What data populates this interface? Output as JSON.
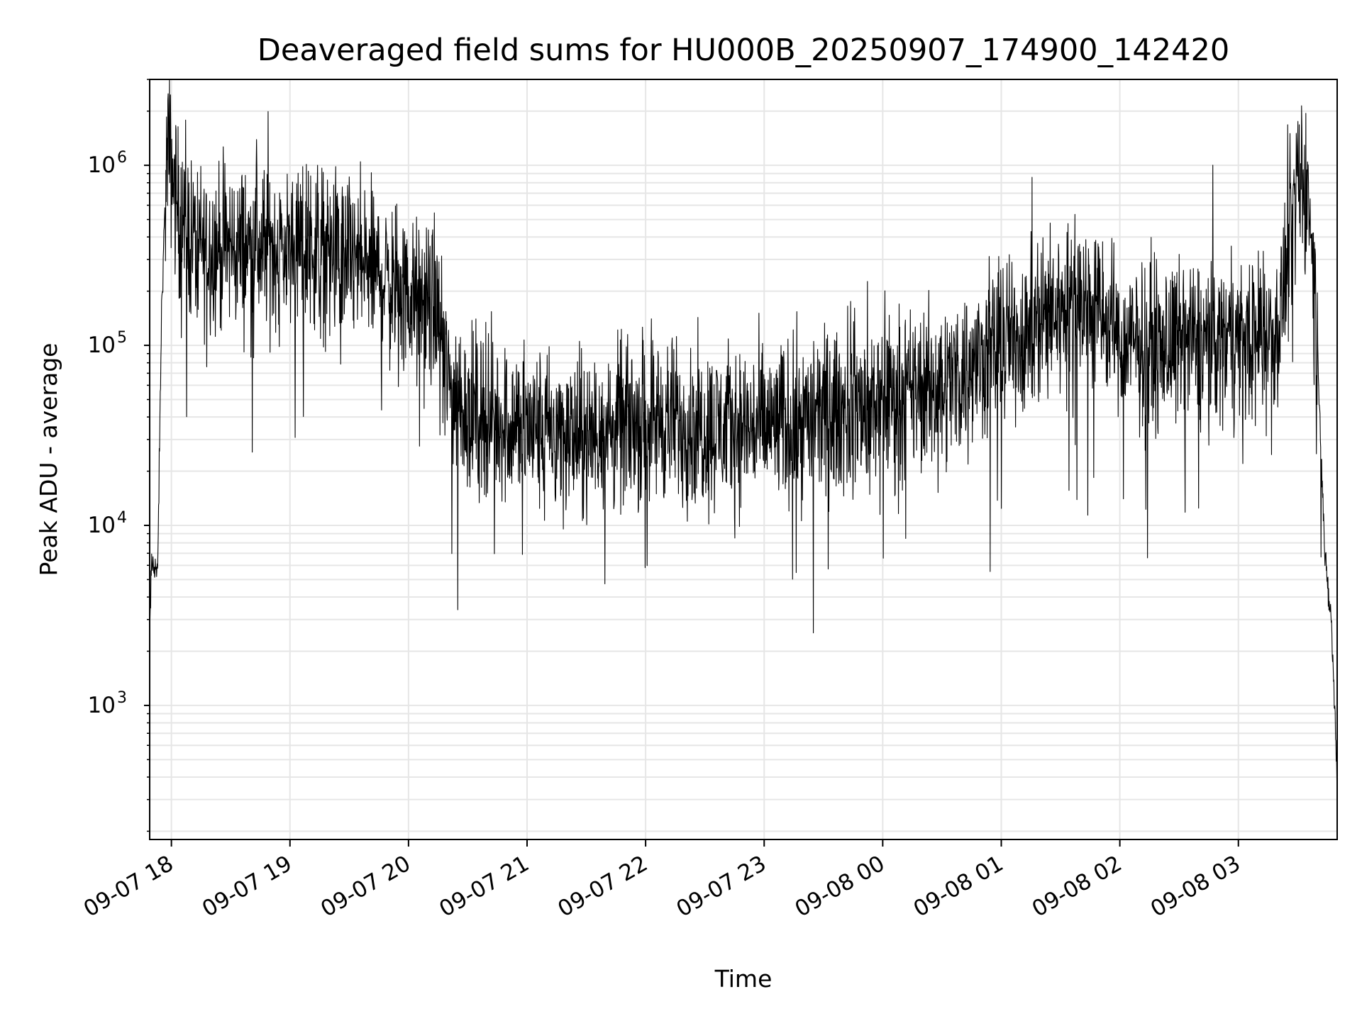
{
  "chart_data": {
    "type": "line",
    "title": "Deaveraged field sums for HU000B_20250907_174900_142420",
    "xlabel": "Time",
    "ylabel": "Peak ADU - average",
    "y_scale": "log",
    "ylim": [
      180,
      3000000
    ],
    "xlim": [
      "2025-09-07 17:49",
      "2025-09-08 03:50"
    ],
    "grid": true,
    "line_color": "#000000",
    "x_ticks": [
      "09-07 18",
      "09-07 19",
      "09-07 20",
      "09-07 21",
      "09-07 22",
      "09-07 23",
      "09-08 00",
      "09-08 01",
      "09-08 02",
      "09-08 03"
    ],
    "y_ticks": [
      {
        "base": "10",
        "exp": "3",
        "value": 1000
      },
      {
        "base": "10",
        "exp": "4",
        "value": 10000
      },
      {
        "base": "10",
        "exp": "5",
        "value": 100000
      },
      {
        "base": "10",
        "exp": "6",
        "value": 1000000
      }
    ],
    "series": [
      {
        "x": [
          "2025-09-07 17:49",
          "2025-09-07 17:50",
          "2025-09-07 17:52",
          "2025-09-07 17:53",
          "2025-09-07 17:55",
          "2025-09-07 17:57",
          "2025-09-07 17:58",
          "2025-09-07 18:00",
          "2025-09-07 18:02",
          "2025-09-07 18:04",
          "2025-09-07 18:07",
          "2025-09-07 18:10",
          "2025-09-07 18:15",
          "2025-09-07 18:20",
          "2025-09-07 18:30",
          "2025-09-07 18:45",
          "2025-09-07 19:00",
          "2025-09-07 19:15",
          "2025-09-07 19:30",
          "2025-09-07 19:45",
          "2025-09-07 20:00",
          "2025-09-07 20:15",
          "2025-09-07 20:20",
          "2025-09-07 20:30",
          "2025-09-07 20:40",
          "2025-09-07 21:00",
          "2025-09-07 21:30",
          "2025-09-07 22:00",
          "2025-09-07 22:30",
          "2025-09-07 23:00",
          "2025-09-07 23:30",
          "2025-09-08 00:00",
          "2025-09-08 00:30",
          "2025-09-08 01:00",
          "2025-09-08 01:30",
          "2025-09-08 01:45",
          "2025-09-08 02:00",
          "2025-09-08 02:30",
          "2025-09-08 03:00",
          "2025-09-08 03:20",
          "2025-09-08 03:28",
          "2025-09-08 03:32",
          "2025-09-08 03:36",
          "2025-09-08 03:40",
          "2025-09-08 03:44",
          "2025-09-08 03:47",
          "2025-09-08 03:50"
        ],
        "y": [
          2500,
          6000,
          6000,
          5000,
          150000,
          700000,
          1200000,
          1000000,
          700000,
          500000,
          450000,
          400000,
          350000,
          350000,
          350000,
          350000,
          350000,
          350000,
          300000,
          250000,
          180000,
          150000,
          60000,
          45000,
          40000,
          35000,
          30000,
          40000,
          35000,
          35000,
          40000,
          50000,
          60000,
          100000,
          160000,
          180000,
          100000,
          100000,
          110000,
          120000,
          500000,
          900000,
          600000,
          100000,
          6000,
          3000,
          400
        ]
      }
    ]
  }
}
